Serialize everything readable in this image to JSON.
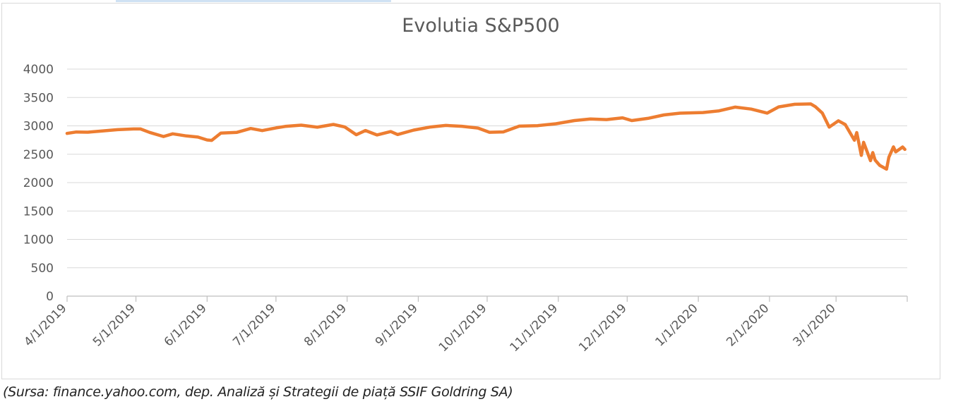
{
  "chart_data": {
    "type": "line",
    "title": "Evolutia S&P500",
    "xlabel": "",
    "ylabel": "",
    "ylim": [
      0,
      4000
    ],
    "yticks": [
      0,
      500,
      1000,
      1500,
      2000,
      2500,
      3000,
      3500,
      4000
    ],
    "xlim": [
      "2019-04-01",
      "2020-04-01"
    ],
    "xticks": [
      {
        "date": "2019-04-01",
        "label": "4/1/2019"
      },
      {
        "date": "2019-05-01",
        "label": "5/1/2019"
      },
      {
        "date": "2019-06-01",
        "label": "6/1/2019"
      },
      {
        "date": "2019-07-01",
        "label": "7/1/2019"
      },
      {
        "date": "2019-08-01",
        "label": "8/1/2019"
      },
      {
        "date": "2019-09-01",
        "label": "9/1/2019"
      },
      {
        "date": "2019-10-01",
        "label": "10/1/2019"
      },
      {
        "date": "2019-11-01",
        "label": "11/1/2019"
      },
      {
        "date": "2019-12-01",
        "label": "12/1/2019"
      },
      {
        "date": "2020-01-01",
        "label": "1/1/2020"
      },
      {
        "date": "2020-02-01",
        "label": "2/1/2020"
      },
      {
        "date": "2020-03-01",
        "label": "3/1/2020"
      }
    ],
    "grid": true,
    "series": [
      {
        "color": "#ed7d31",
        "points": [
          [
            "2019-04-01",
            2867
          ],
          [
            "2019-04-05",
            2892
          ],
          [
            "2019-04-10",
            2888
          ],
          [
            "2019-04-15",
            2905
          ],
          [
            "2019-04-23",
            2933
          ],
          [
            "2019-04-30",
            2945
          ],
          [
            "2019-05-03",
            2945
          ],
          [
            "2019-05-07",
            2884
          ],
          [
            "2019-05-13",
            2812
          ],
          [
            "2019-05-17",
            2860
          ],
          [
            "2019-05-23",
            2822
          ],
          [
            "2019-05-28",
            2802
          ],
          [
            "2019-06-01",
            2751
          ],
          [
            "2019-06-03",
            2744
          ],
          [
            "2019-06-07",
            2873
          ],
          [
            "2019-06-14",
            2886
          ],
          [
            "2019-06-20",
            2954
          ],
          [
            "2019-06-25",
            2917
          ],
          [
            "2019-07-01",
            2964
          ],
          [
            "2019-07-05",
            2990
          ],
          [
            "2019-07-12",
            3013
          ],
          [
            "2019-07-19",
            2976
          ],
          [
            "2019-07-26",
            3025
          ],
          [
            "2019-07-31",
            2980
          ],
          [
            "2019-08-05",
            2844
          ],
          [
            "2019-08-09",
            2918
          ],
          [
            "2019-08-14",
            2840
          ],
          [
            "2019-08-20",
            2900
          ],
          [
            "2019-08-23",
            2847
          ],
          [
            "2019-08-30",
            2926
          ],
          [
            "2019-09-06",
            2978
          ],
          [
            "2019-09-13",
            3007
          ],
          [
            "2019-09-20",
            2992
          ],
          [
            "2019-09-27",
            2961
          ],
          [
            "2019-10-02",
            2887
          ],
          [
            "2019-10-08",
            2893
          ],
          [
            "2019-10-15",
            2995
          ],
          [
            "2019-10-23",
            3004
          ],
          [
            "2019-10-31",
            3037
          ],
          [
            "2019-11-08",
            3093
          ],
          [
            "2019-11-15",
            3120
          ],
          [
            "2019-11-22",
            3110
          ],
          [
            "2019-11-29",
            3141
          ],
          [
            "2019-12-03",
            3093
          ],
          [
            "2019-12-10",
            3132
          ],
          [
            "2019-12-17",
            3192
          ],
          [
            "2019-12-24",
            3223
          ],
          [
            "2019-12-31",
            3231
          ],
          [
            "2020-01-03",
            3235
          ],
          [
            "2020-01-10",
            3265
          ],
          [
            "2020-01-17",
            3330
          ],
          [
            "2020-01-24",
            3296
          ],
          [
            "2020-01-31",
            3225
          ],
          [
            "2020-02-05",
            3334
          ],
          [
            "2020-02-12",
            3380
          ],
          [
            "2020-02-19",
            3386
          ],
          [
            "2020-02-21",
            3338
          ],
          [
            "2020-02-24",
            3226
          ],
          [
            "2020-02-27",
            2978
          ],
          [
            "2020-03-02",
            3090
          ],
          [
            "2020-03-05",
            3023
          ],
          [
            "2020-03-09",
            2746
          ],
          [
            "2020-03-10",
            2882
          ],
          [
            "2020-03-12",
            2480
          ],
          [
            "2020-03-13",
            2711
          ],
          [
            "2020-03-16",
            2386
          ],
          [
            "2020-03-17",
            2529
          ],
          [
            "2020-03-18",
            2398
          ],
          [
            "2020-03-20",
            2304
          ],
          [
            "2020-03-23",
            2237
          ],
          [
            "2020-03-24",
            2447
          ],
          [
            "2020-03-26",
            2630
          ],
          [
            "2020-03-27",
            2541
          ],
          [
            "2020-03-30",
            2627
          ],
          [
            "2020-03-31",
            2585
          ]
        ]
      }
    ]
  },
  "footer": {
    "source_text": "(Sursa: finance.yahoo.com, dep. Analiză și Strategii de piață SSIF Goldring SA)"
  }
}
